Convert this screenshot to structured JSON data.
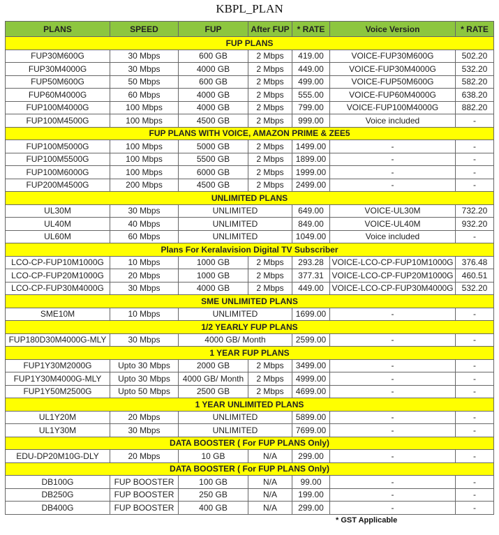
{
  "title": "KBPL_PLAN",
  "colors": {
    "header": "#8dc63f",
    "section": "#ffff00"
  },
  "headers": [
    "PLANS",
    "SPEED",
    "FUP",
    "After FUP",
    "* RATE",
    "Voice Version",
    "* RATE"
  ],
  "sections": [
    {
      "name": "FUP PLANS",
      "rows": [
        [
          "FUP30M600G",
          "30 Mbps",
          "600 GB",
          "2 Mbps",
          "419.00",
          "VOICE-FUP30M600G",
          "502.20"
        ],
        [
          "FUP30M4000G",
          "30 Mbps",
          "4000 GB",
          "2 Mbps",
          "449.00",
          "VOICE-FUP30M4000G",
          "532.20"
        ],
        [
          "FUP50M600G",
          "50 Mbps",
          "600 GB",
          "2 Mbps",
          "499.00",
          "VOICE-FUP50M600G",
          "582.20"
        ],
        [
          "FUP60M4000G",
          "60 Mbps",
          "4000 GB",
          "2 Mbps",
          "555.00",
          "VOICE-FUP60M4000G",
          "638.20"
        ],
        [
          "FUP100M4000G",
          "100 Mbps",
          "4000 GB",
          "2 Mbps",
          "799.00",
          "VOICE-FUP100M4000G",
          "882.20"
        ],
        [
          "FUP100M4500G",
          "100 Mbps",
          "4500 GB",
          "2 Mbps",
          "999.00",
          "Voice included",
          "-"
        ]
      ]
    },
    {
      "name": "FUP PLANS WITH VOICE, AMAZON PRIME & ZEE5",
      "rows": [
        [
          "FUP100M5000G",
          "100 Mbps",
          "5000 GB",
          "2 Mbps",
          "1499.00",
          "-",
          "-"
        ],
        [
          "FUP100M5500G",
          "100 Mbps",
          "5500 GB",
          "2 Mbps",
          "1899.00",
          "-",
          "-"
        ],
        [
          "FUP100M6000G",
          "100 Mbps",
          "6000 GB",
          "2 Mbps",
          "1999.00",
          "-",
          "-"
        ],
        [
          "FUP200M4500G",
          "200 Mbps",
          "4500 GB",
          "2 Mbps",
          "2499.00",
          "-",
          "-"
        ]
      ]
    },
    {
      "name": "UNLIMITED PLANS",
      "rows": [
        [
          "UL30M",
          "30 Mbps",
          "UNLIMITED",
          null,
          "649.00",
          "VOICE-UL30M",
          "732.20"
        ],
        [
          "UL40M",
          "40 Mbps",
          "UNLIMITED",
          null,
          "849.00",
          "VOICE-UL40M",
          "932.20"
        ],
        [
          "UL60M",
          "60 Mbps",
          "UNLIMITED",
          null,
          "1049.00",
          "Voice included",
          "-"
        ]
      ]
    },
    {
      "name": "Plans For Keralavision Digital TV Subscriber",
      "rows": [
        [
          "LCO-CP-FUP10M1000G",
          "10 Mbps",
          "1000 GB",
          "2 Mbps",
          "293.28",
          "VOICE-LCO-CP-FUP10M1000G",
          "376.48"
        ],
        [
          "LCO-CP-FUP20M1000G",
          "20 Mbps",
          "1000 GB",
          "2 Mbps",
          "377.31",
          "VOICE-LCO-CP-FUP20M1000G",
          "460.51"
        ],
        [
          "LCO-CP-FUP30M4000G",
          "30 Mbps",
          "4000 GB",
          "2 Mbps",
          "449.00",
          "VOICE-LCO-CP-FUP30M4000G",
          "532.20"
        ]
      ]
    },
    {
      "name": "SME UNLIMITED PLANS",
      "rows": [
        [
          "SME10M",
          "10 Mbps",
          "UNLIMITED",
          null,
          "1699.00",
          "-",
          "-"
        ]
      ]
    },
    {
      "name": "1/2 YEARLY FUP PLANS",
      "rows": [
        [
          "FUP180D30M4000G-MLY",
          "30 Mbps",
          "4000 GB/ Month",
          null,
          "2599.00",
          "-",
          "-"
        ]
      ]
    },
    {
      "name": "1 YEAR FUP PLANS",
      "rows": [
        [
          "FUP1Y30M2000G",
          "Upto 30 Mbps",
          "2000 GB",
          "2 Mbps",
          "3499.00",
          "-",
          "-"
        ],
        [
          "FUP1Y30M4000G-MLY",
          "Upto 30 Mbps",
          "4000 GB/ Month",
          "2 Mbps",
          "4999.00",
          "-",
          "-"
        ],
        [
          "FUP1Y50M2500G",
          "Upto 50 Mbps",
          "2500 GB",
          "2 Mbps",
          "4699.00",
          "-",
          "-"
        ]
      ]
    },
    {
      "name": "1 YEAR UNLIMITED PLANS",
      "rows": [
        [
          "UL1Y20M",
          "20 Mbps",
          "UNLIMITED",
          null,
          "5899.00",
          "-",
          "-"
        ],
        [
          "UL1Y30M",
          "30 Mbps",
          "UNLIMITED",
          null,
          "7699.00",
          "-",
          "-"
        ]
      ]
    },
    {
      "name": "DATA BOOSTER ( For FUP PLANS Only)",
      "rows": [
        [
          "EDU-DP20M10G-DLY",
          "20 Mbps",
          "10 GB",
          "N/A",
          "299.00",
          "-",
          "-"
        ]
      ]
    },
    {
      "name": "DATA BOOSTER ( For FUP PLANS Only)",
      "rows": [
        [
          "DB100G",
          "FUP BOOSTER",
          "100 GB",
          "N/A",
          "99.00",
          "-",
          "-"
        ],
        [
          "DB250G",
          "FUP BOOSTER",
          "250 GB",
          "N/A",
          "199.00",
          "-",
          "-"
        ],
        [
          "DB400G",
          "FUP BOOSTER",
          "400 GB",
          "N/A",
          "299.00",
          "-",
          "-"
        ]
      ]
    }
  ],
  "footnote": "* GST Applicable"
}
